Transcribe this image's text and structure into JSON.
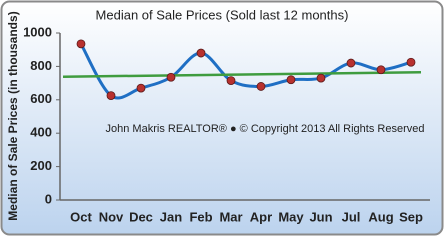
{
  "chart_data": {
    "type": "line",
    "title": "Median of Sale Prices (Sold last 12 months)",
    "y_label": "Median of Sale Prices (in thousands)",
    "annotation": "John Makris REALTOR®  ●  © Copyright 2013 All Rights Reserved",
    "categories": [
      "Oct",
      "Nov",
      "Dec",
      "Jan",
      "Feb",
      "Mar",
      "Apr",
      "May",
      "Jun",
      "Jul",
      "Aug",
      "Sep"
    ],
    "values": [
      935,
      625,
      670,
      735,
      880,
      715,
      680,
      720,
      730,
      820,
      780,
      825
    ],
    "color": "#1f6fc4",
    "marker_color": "#b8312f",
    "trendline": {
      "values": [
        738,
        765
      ],
      "color": "#3f9c3f"
    },
    "ylim": [
      0,
      1000
    ],
    "yticks": [
      0,
      200,
      400,
      600,
      800,
      1000
    ],
    "grid": false
  }
}
